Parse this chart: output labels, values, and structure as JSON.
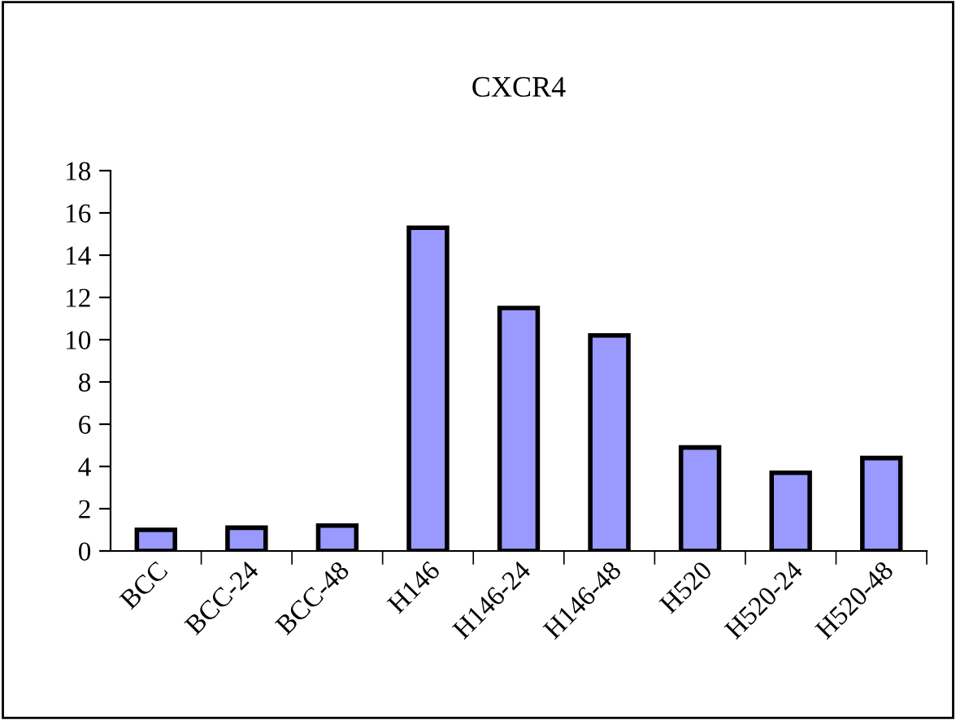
{
  "chart_data": {
    "type": "bar",
    "title": "CXCR4",
    "categories": [
      "BCC",
      "BCC-24",
      "BCC-48",
      "H146",
      "H146-24",
      "H146-48",
      "H520",
      "H520-24",
      "H520-48"
    ],
    "values": [
      1.0,
      1.1,
      1.2,
      15.3,
      11.5,
      10.2,
      4.9,
      3.7,
      4.4
    ],
    "color": "#9999ff",
    "ylim": [
      0,
      18
    ],
    "yticks": [
      0,
      2,
      4,
      6,
      8,
      10,
      12,
      14,
      16,
      18
    ],
    "grid": false,
    "legend": false
  }
}
